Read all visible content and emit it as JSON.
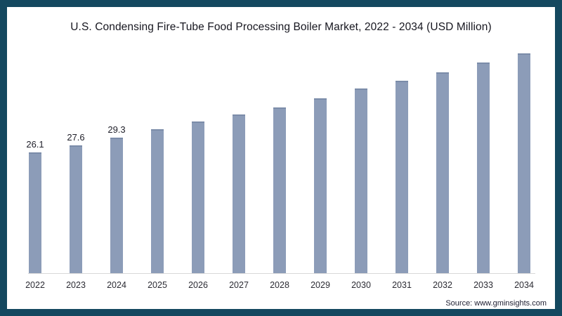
{
  "chart_data": {
    "type": "bar",
    "title": "U.S. Condensing Fire-Tube Food Processing Boiler Market, 2022 - 2034 (USD Million)",
    "categories": [
      "2022",
      "2023",
      "2024",
      "2025",
      "2026",
      "2027",
      "2028",
      "2029",
      "2030",
      "2031",
      "2032",
      "2033",
      "2034"
    ],
    "values": [
      26.1,
      27.6,
      29.3,
      31.0,
      32.8,
      34.2,
      35.8,
      37.7,
      39.8,
      41.5,
      43.3,
      45.5,
      47.5
    ],
    "data_labels": [
      "26.1",
      "27.6",
      "29.3",
      "",
      "",
      "",
      "",
      "",
      "",
      "",
      "",
      "",
      ""
    ],
    "xlabel": "",
    "ylabel": "",
    "ylim": [
      0,
      50
    ],
    "grid": false,
    "legend": "none",
    "bar_color": "#8c9cb8",
    "bar_top_edge_color": "#7b8ca9",
    "axis_line_color": "#d9d9d9"
  },
  "frame": {
    "border_color": "#14485f",
    "background": "#ffffff"
  },
  "footer": {
    "source": "Source: www.gminsights.com"
  }
}
